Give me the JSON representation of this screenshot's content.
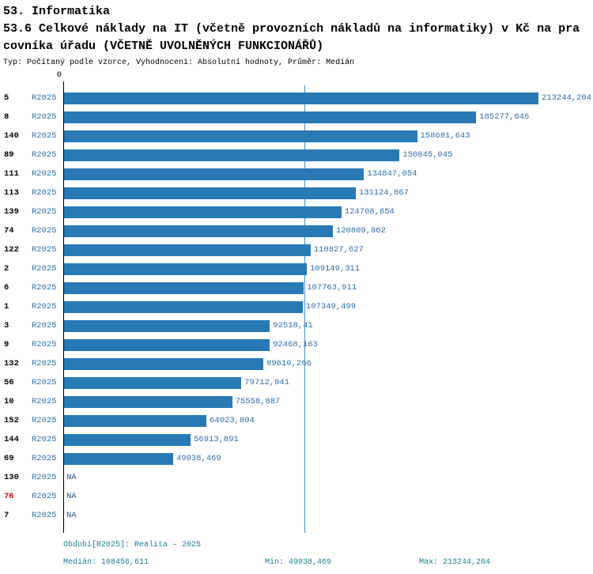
{
  "header": {
    "line1": "53. Informatika",
    "line2": "53.6 Celkové náklady na IT (včetně provozních nákladů na informatiky) v Kč na pra",
    "line3": "covníka úřadu (VČETNĚ UVOLNĚNÝCH FUNKCIONÁŘŮ)",
    "subtitle": "Typ: Počítaný podle vzorce, Vyhodnocení: Absolutní hodnoty, Průměr: Medián"
  },
  "chart_data": {
    "type": "bar",
    "orientation": "horizontal",
    "series_label": "R2025",
    "axis_zero_label": "0",
    "axis_max": 213244.204,
    "median_line_value": 108456.611,
    "bar_color": "#2979b5",
    "value_color": "#2e6ea9",
    "na_color": "#23527c",
    "highlight_color": "#cc0000",
    "median_line_color": "#4a8fc7",
    "footer_color": "#177f92",
    "rows": [
      {
        "id": "5",
        "value": 213244.204,
        "display": "213244,204"
      },
      {
        "id": "8",
        "value": 185277.646,
        "display": "185277,646"
      },
      {
        "id": "140",
        "value": 158681.643,
        "display": "158681,643"
      },
      {
        "id": "89",
        "value": 150845.045,
        "display": "150845,045"
      },
      {
        "id": "111",
        "value": 134847.054,
        "display": "134847,054"
      },
      {
        "id": "113",
        "value": 131124.867,
        "display": "131124,867"
      },
      {
        "id": "139",
        "value": 124708.654,
        "display": "124708,654"
      },
      {
        "id": "74",
        "value": 120809.962,
        "display": "120809,962"
      },
      {
        "id": "122",
        "value": 110827.627,
        "display": "110827,627"
      },
      {
        "id": "2",
        "value": 109149.311,
        "display": "109149,311"
      },
      {
        "id": "6",
        "value": 107763.911,
        "display": "107763,911"
      },
      {
        "id": "1",
        "value": 107349.499,
        "display": "107349,499"
      },
      {
        "id": "3",
        "value": 92518.41,
        "display": "92518,41"
      },
      {
        "id": "9",
        "value": 92468.163,
        "display": "92468,163"
      },
      {
        "id": "132",
        "value": 89610.266,
        "display": "89610,266"
      },
      {
        "id": "56",
        "value": 79712.041,
        "display": "79712,041"
      },
      {
        "id": "10",
        "value": 75558.887,
        "display": "75558,887"
      },
      {
        "id": "152",
        "value": 64023.804,
        "display": "64023,804"
      },
      {
        "id": "144",
        "value": 56913.891,
        "display": "56913,891"
      },
      {
        "id": "69",
        "value": 49038.469,
        "display": "49038,469"
      },
      {
        "id": "130",
        "value": null,
        "display": "NA"
      },
      {
        "id": "76",
        "value": null,
        "display": "NA",
        "highlight": true
      },
      {
        "id": "7",
        "value": null,
        "display": "NA"
      }
    ]
  },
  "footer": {
    "period": "Období[R2025]: Realita – 2025",
    "median": "Medián: 108456,611",
    "min": "Min: 49038,469",
    "max": "Max: 213244,204"
  }
}
